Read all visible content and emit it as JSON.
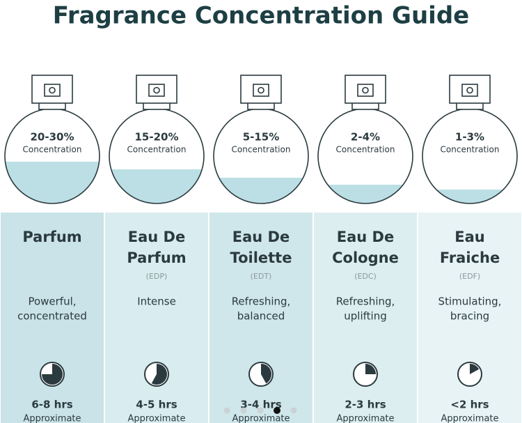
{
  "title": "Fragrance Concentration Guide",
  "columns": [
    {
      "concentration": "20-30%",
      "concentration_label": "Concentration",
      "name": [
        "Parfum"
      ],
      "description": [
        "Powerful,",
        "concentrated"
      ],
      "duration": "6-8 hrs",
      "duration_note": "Approximate"
    },
    {
      "concentration": "15-20%",
      "concentration_label": "Concentration",
      "name": [
        "Eau De",
        "Parfum"
      ],
      "abbreviation": "(EDP)",
      "description": [
        "Intense"
      ],
      "duration": "4-5 hrs",
      "duration_note": "Approximate"
    },
    {
      "concentration": "5-15%",
      "concentration_label": "Concentration",
      "name": [
        "Eau De",
        "Toilette"
      ],
      "abbreviation": "(EDT)",
      "description": [
        "Refreshing,",
        "balanced"
      ],
      "duration": "3-4 hrs",
      "duration_note": "Approximate"
    },
    {
      "concentration": "2-4%",
      "concentration_label": "Concentration",
      "name": [
        "Eau De",
        "Cologne"
      ],
      "abbreviation": "(EDC)",
      "description": [
        "Refreshing,",
        "uplifting"
      ],
      "duration": "2-3 hrs",
      "duration_note": "Approximate"
    },
    {
      "concentration": "1-3%",
      "concentration_label": "Concentration",
      "name": [
        "Eau",
        "Fraiche"
      ],
      "abbreviation": "(EDF)",
      "description": [
        "Stimulating,",
        "bracing"
      ],
      "duration": "<2 hrs",
      "duration_note": "Approximate"
    }
  ]
}
